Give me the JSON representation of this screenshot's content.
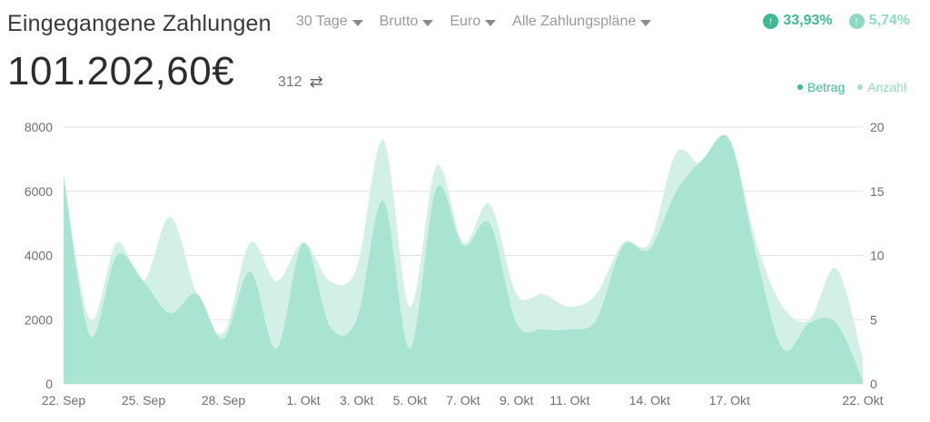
{
  "header": {
    "title": "Eingegangene Zahlungen",
    "filters": [
      {
        "label": "30 Tage"
      },
      {
        "label": "Brutto"
      },
      {
        "label": "Euro"
      },
      {
        "label": "Alle Zahlungspläne"
      }
    ],
    "stats": [
      {
        "value": "33,93%",
        "color": "#3dba95",
        "icon": "arrow-up-circle-icon"
      },
      {
        "value": "5,74%",
        "color": "#8fd9c2",
        "icon": "arrow-up-circle-icon"
      }
    ],
    "total": "101.202,60€",
    "count": "312",
    "count_icon": "swap-arrows-icon"
  },
  "legend": [
    {
      "label": "Betrag",
      "color": "#3dba95"
    },
    {
      "label": "Anzahl",
      "color": "#a3e0cc"
    }
  ],
  "chart_data": {
    "type": "area",
    "x": [
      "22. Sep",
      "23. Sep",
      "24. Sep",
      "25. Sep",
      "26. Sep",
      "27. Sep",
      "28. Sep",
      "29. Sep",
      "30. Sep",
      "1. Okt",
      "2. Okt",
      "3. Okt",
      "4. Okt",
      "5. Okt",
      "6. Okt",
      "7. Okt",
      "8. Okt",
      "9. Okt",
      "10. Okt",
      "11. Okt",
      "12. Okt",
      "13. Okt",
      "14. Okt",
      "15. Okt",
      "16. Okt",
      "17. Okt",
      "18. Okt",
      "19. Okt",
      "20. Okt",
      "21. Okt",
      "22. Okt"
    ],
    "xticks": [
      "22. Sep",
      "25. Sep",
      "28. Sep",
      "1. Okt",
      "3. Okt",
      "5. Okt",
      "7. Okt",
      "9. Okt",
      "11. Okt",
      "14. Okt",
      "17. Okt",
      "22. Okt"
    ],
    "xtick_indices": [
      0,
      3,
      6,
      9,
      11,
      13,
      15,
      17,
      19,
      22,
      25,
      30
    ],
    "series": [
      {
        "name": "Betrag",
        "axis": "left",
        "color": "#a9e4d2",
        "values": [
          6500,
          1500,
          4000,
          3200,
          2200,
          2800,
          1400,
          3500,
          1100,
          4400,
          1800,
          2000,
          5700,
          1100,
          6100,
          4300,
          5000,
          1900,
          1700,
          1700,
          2000,
          4300,
          4200,
          6000,
          7000,
          7600,
          4000,
          1100,
          1900,
          1900,
          100
        ]
      },
      {
        "name": "Anzahl",
        "axis": "right",
        "color": "#d3f0e6",
        "values": [
          16,
          5,
          11,
          8,
          13,
          7,
          4,
          11,
          8,
          11,
          8,
          9,
          19,
          6,
          17,
          11,
          14,
          7,
          7,
          6,
          7,
          11,
          11,
          18,
          17,
          19,
          11,
          6,
          5,
          9,
          2
        ]
      }
    ],
    "y_left": {
      "ticks": [
        0,
        2000,
        4000,
        6000,
        8000
      ],
      "ylim": [
        0,
        8000
      ]
    },
    "y_right": {
      "ticks": [
        0,
        5,
        10,
        15,
        20
      ],
      "ylim": [
        0,
        20
      ]
    },
    "grid": true,
    "legend_position": "top-right"
  }
}
